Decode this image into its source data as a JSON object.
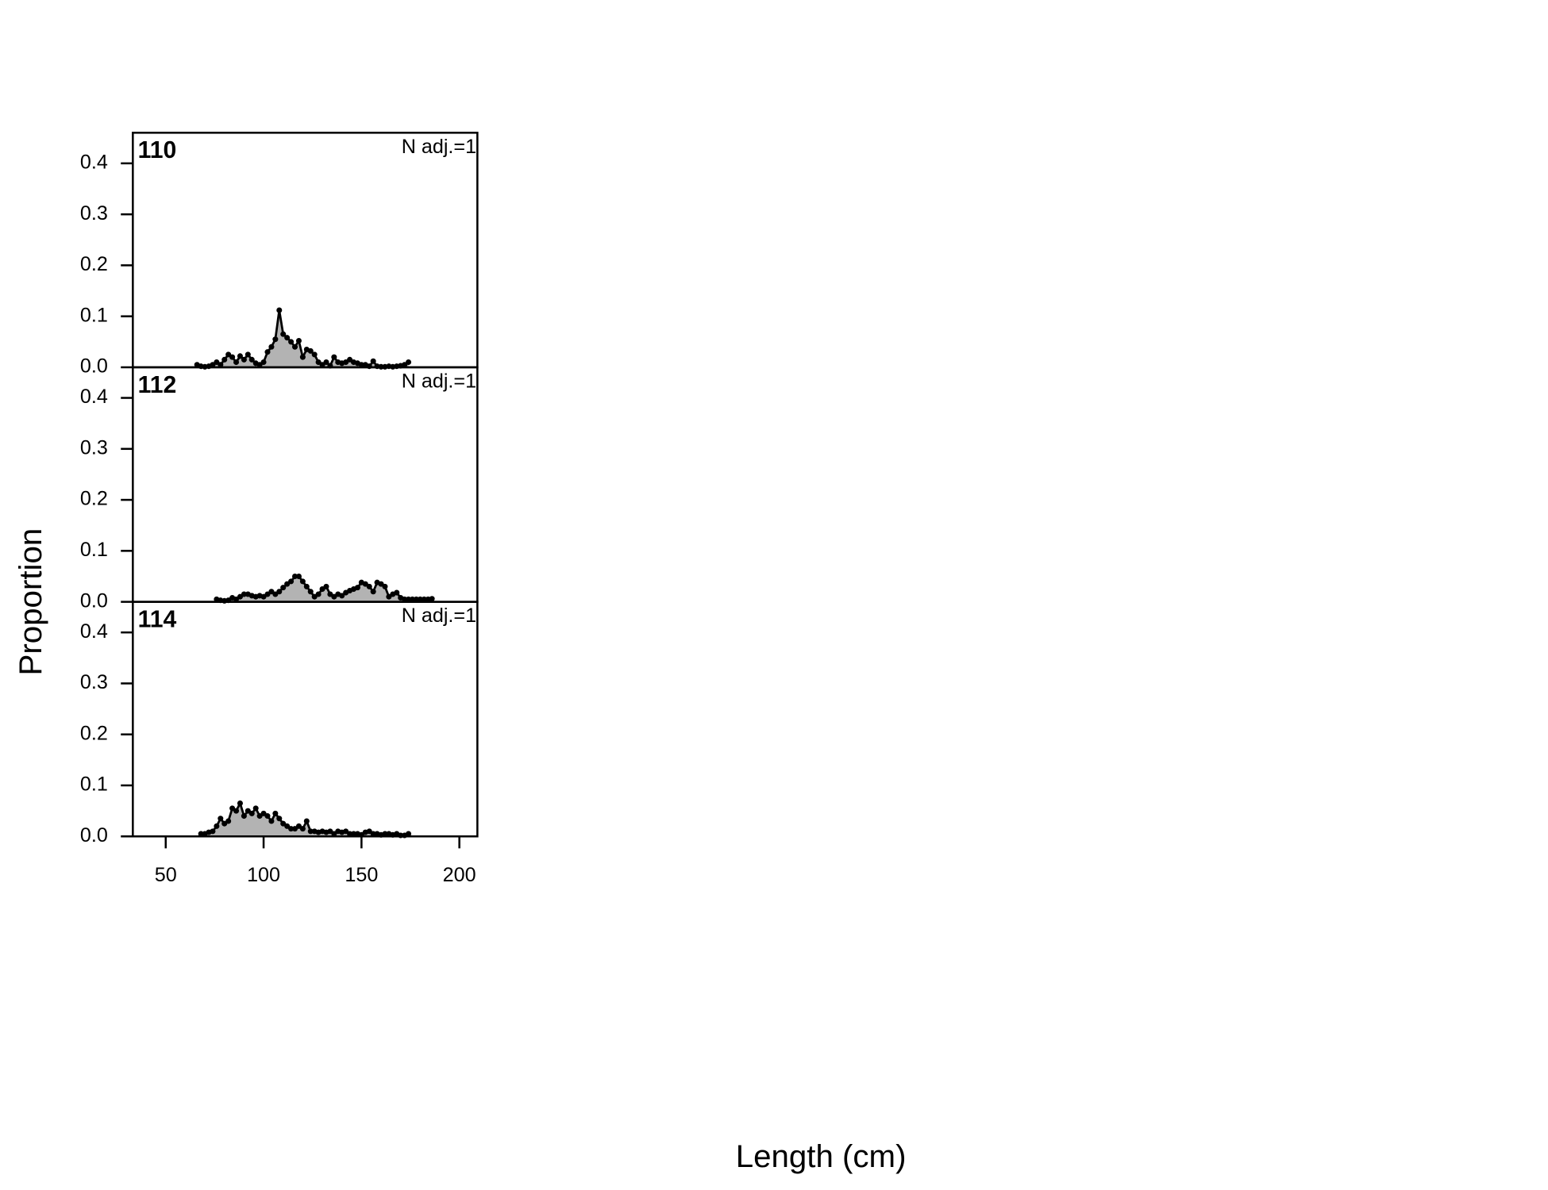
{
  "chart_data": [
    {
      "type": "area",
      "title": "110",
      "annotation": "N adj.=1",
      "ylabel": "Proportion",
      "x": [
        66,
        68,
        70,
        72,
        74,
        76,
        78,
        80,
        82,
        84,
        86,
        88,
        90,
        92,
        94,
        96,
        98,
        100,
        102,
        104,
        106,
        108,
        110,
        112,
        114,
        116,
        118,
        120,
        122,
        124,
        126,
        128,
        130,
        132,
        134,
        136,
        138,
        140,
        142,
        144,
        146,
        148,
        150,
        152,
        154,
        156,
        158,
        160,
        162,
        164,
        166,
        168,
        170,
        172,
        174
      ],
      "values": [
        0.005,
        0.002,
        0.001,
        0.002,
        0.005,
        0.01,
        0.005,
        0.015,
        0.025,
        0.02,
        0.01,
        0.022,
        0.015,
        0.025,
        0.015,
        0.008,
        0.005,
        0.01,
        0.03,
        0.04,
        0.055,
        0.112,
        0.065,
        0.058,
        0.05,
        0.04,
        0.052,
        0.02,
        0.035,
        0.032,
        0.025,
        0.01,
        0.005,
        0.01,
        0.003,
        0.02,
        0.01,
        0.008,
        0.01,
        0.015,
        0.01,
        0.008,
        0.005,
        0.005,
        0.002,
        0.012,
        0.002,
        0.001,
        0.001,
        0.002,
        0.001,
        0.002,
        0.003,
        0.005,
        0.01
      ],
      "xlim": [
        33.2,
        209.2
      ],
      "ylim": [
        0,
        0.46
      ],
      "yticks": [
        {
          "value": 0,
          "label": "0.0"
        },
        0.1,
        0.2,
        0.3,
        0.4
      ]
    },
    {
      "type": "area",
      "title": "112",
      "annotation": "N adj.=1",
      "x": [
        76,
        78,
        80,
        82,
        84,
        86,
        88,
        90,
        92,
        94,
        96,
        98,
        100,
        102,
        104,
        106,
        108,
        110,
        112,
        114,
        116,
        118,
        120,
        122,
        124,
        126,
        128,
        130,
        132,
        134,
        136,
        138,
        140,
        142,
        144,
        146,
        148,
        150,
        152,
        154,
        156,
        158,
        160,
        162,
        164,
        166,
        168,
        170,
        172,
        174,
        176,
        178,
        180,
        182,
        184,
        186
      ],
      "values": [
        0.005,
        0.003,
        0.002,
        0.003,
        0.008,
        0.005,
        0.01,
        0.015,
        0.015,
        0.012,
        0.01,
        0.012,
        0.01,
        0.015,
        0.02,
        0.015,
        0.02,
        0.028,
        0.035,
        0.04,
        0.05,
        0.05,
        0.04,
        0.03,
        0.02,
        0.01,
        0.015,
        0.025,
        0.03,
        0.015,
        0.01,
        0.015,
        0.012,
        0.018,
        0.022,
        0.025,
        0.028,
        0.038,
        0.035,
        0.03,
        0.02,
        0.038,
        0.035,
        0.03,
        0.01,
        0.015,
        0.018,
        0.008,
        0.005,
        0.005,
        0.005,
        0.005,
        0.005,
        0.005,
        0.005,
        0.006
      ],
      "xlim": [
        33.2,
        209.2
      ],
      "ylim": [
        0,
        0.46
      ],
      "yticks": [
        {
          "value": 0,
          "label": "0.0"
        },
        0.1,
        0.2,
        0.3,
        0.4
      ]
    },
    {
      "type": "area",
      "title": "114",
      "annotation": "N adj.=1",
      "xlabel": "Length (cm)",
      "x": [
        68,
        70,
        72,
        74,
        76,
        78,
        80,
        82,
        84,
        86,
        88,
        90,
        92,
        94,
        96,
        98,
        100,
        102,
        104,
        106,
        108,
        110,
        112,
        114,
        116,
        118,
        120,
        122,
        124,
        126,
        128,
        130,
        132,
        134,
        136,
        138,
        140,
        142,
        144,
        146,
        148,
        150,
        152,
        154,
        156,
        158,
        160,
        162,
        164,
        166,
        168,
        170,
        172,
        174
      ],
      "values": [
        0.005,
        0.005,
        0.008,
        0.01,
        0.02,
        0.035,
        0.025,
        0.03,
        0.055,
        0.05,
        0.065,
        0.04,
        0.05,
        0.045,
        0.055,
        0.04,
        0.045,
        0.04,
        0.03,
        0.045,
        0.035,
        0.025,
        0.02,
        0.015,
        0.015,
        0.02,
        0.015,
        0.03,
        0.01,
        0.01,
        0.008,
        0.01,
        0.008,
        0.01,
        0.005,
        0.01,
        0.008,
        0.01,
        0.005,
        0.005,
        0.005,
        0.003,
        0.008,
        0.01,
        0.005,
        0.005,
        0.003,
        0.005,
        0.005,
        0.003,
        0.005,
        0.002,
        0.002,
        0.005
      ],
      "xlim": [
        33.2,
        209.2
      ],
      "ylim": [
        0,
        0.46
      ],
      "yticks": [
        {
          "value": 0,
          "label": "0.0"
        },
        0.1,
        0.2,
        0.3,
        0.4
      ],
      "xticks": [
        50,
        100,
        150,
        200
      ]
    }
  ]
}
